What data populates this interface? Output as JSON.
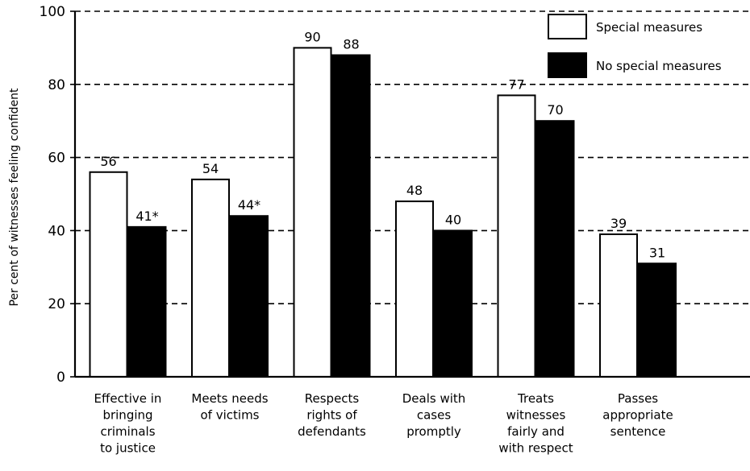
{
  "chart_data": {
    "type": "bar",
    "title": "",
    "xlabel": "",
    "ylabel": "Per cent of witnesses feeling confident",
    "ylim": [
      0,
      100
    ],
    "yticks": [
      0,
      20,
      40,
      60,
      80,
      100
    ],
    "grid": "horizontal-dashed",
    "legend_position": "top-right",
    "categories": [
      [
        "Effective in",
        "bringing",
        "criminals",
        "to justice"
      ],
      [
        "Meets needs",
        "of victims"
      ],
      [
        "Respects",
        "rights of",
        "defendants"
      ],
      [
        "Deals with",
        "cases",
        "promptly"
      ],
      [
        "Treats",
        "witnesses",
        "fairly and",
        "with respect"
      ],
      [
        "Passes",
        "appropriate",
        "sentence"
      ]
    ],
    "series": [
      {
        "name": "Special measures",
        "color": "#ffffff",
        "values": [
          56,
          54,
          90,
          48,
          77,
          39
        ],
        "labels": [
          "56",
          "54",
          "90",
          "48",
          "77",
          "39"
        ]
      },
      {
        "name": "No special measures",
        "color": "#000000",
        "values": [
          41,
          44,
          88,
          40,
          70,
          31
        ],
        "labels": [
          "41*",
          "44*",
          "88",
          "40",
          "70",
          "31"
        ]
      }
    ]
  }
}
